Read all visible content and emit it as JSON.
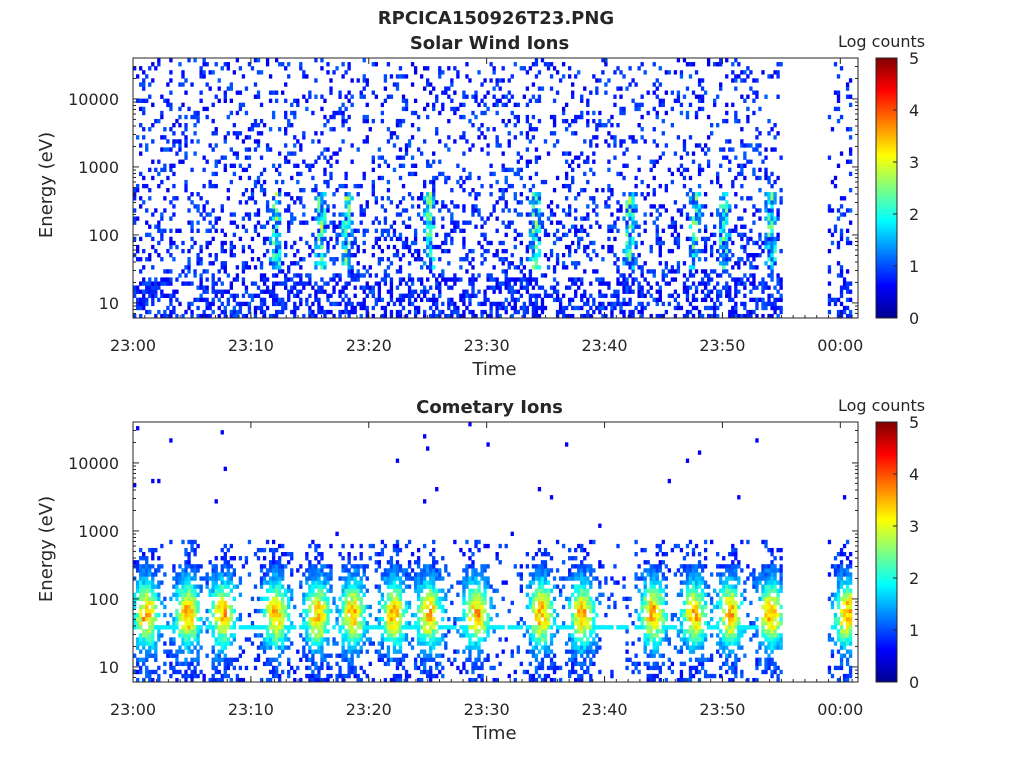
{
  "figure": {
    "title": "RPCICA150926T23.PNG"
  },
  "colors": {
    "colormap": "jet",
    "axis": "#262626",
    "background": "#ffffff"
  },
  "chart_data": [
    {
      "type": "heatmap",
      "title": "Solar Wind Ions",
      "xlabel": "Time",
      "ylabel": "Energy (eV)",
      "y_scale": "log",
      "ylim": [
        6,
        40000
      ],
      "xlim": [
        "23:00",
        "00:01"
      ],
      "xlim_minutes": [
        0,
        61.5
      ],
      "x_ticks": [
        "23:00",
        "23:10",
        "23:20",
        "23:30",
        "23:40",
        "23:50",
        "00:00"
      ],
      "y_ticks": [
        10,
        100,
        1000,
        10000
      ],
      "y_tick_labels": [
        "10",
        "100",
        "1000",
        "10000"
      ],
      "colorbar": {
        "label": "Log counts",
        "min": 0,
        "max": 5,
        "ticks": [
          "0",
          "1",
          "2",
          "3",
          "4",
          "5"
        ]
      },
      "data_gap_minutes": [
        55,
        58.8
      ],
      "bright_bursts_minutes": [
        12,
        15.8,
        18,
        25,
        34,
        42,
        47.5,
        50,
        54
      ],
      "peak_log_counts": 2.2,
      "pattern": "sparse low counts (log 0-1) spread across 10-30000 eV, denser vertical streaks below ~300 eV"
    },
    {
      "type": "heatmap",
      "title": "Cometary Ions",
      "xlabel": "Time",
      "ylabel": "Energy (eV)",
      "y_scale": "log",
      "ylim": [
        6,
        40000
      ],
      "xlim": [
        "23:00",
        "00:01"
      ],
      "xlim_minutes": [
        0,
        61.5
      ],
      "x_ticks": [
        "23:00",
        "23:10",
        "23:20",
        "23:30",
        "23:40",
        "23:50",
        "00:00"
      ],
      "y_ticks": [
        10,
        100,
        1000,
        10000
      ],
      "y_tick_labels": [
        "10",
        "100",
        "1000",
        "10000"
      ],
      "colorbar": {
        "label": "Log counts",
        "min": 0,
        "max": 5,
        "ticks": [
          "0",
          "1",
          "2",
          "3",
          "4",
          "5"
        ]
      },
      "data_gap_minutes": [
        55,
        58.8
      ],
      "bright_bursts_minutes": [
        1,
        4.5,
        7.5,
        12,
        15.5,
        18.5,
        22,
        25,
        29,
        34.5,
        38,
        44,
        47.5,
        50.5,
        54,
        60.5
      ],
      "burst_center_energy_ev": 60,
      "line_energy_ev": 40,
      "peak_log_counts": 3,
      "pattern": "periodic bursts of cometary ions centred near 60 eV reaching ~log 3, band at ~40 eV, very few counts above 1000 eV"
    }
  ]
}
